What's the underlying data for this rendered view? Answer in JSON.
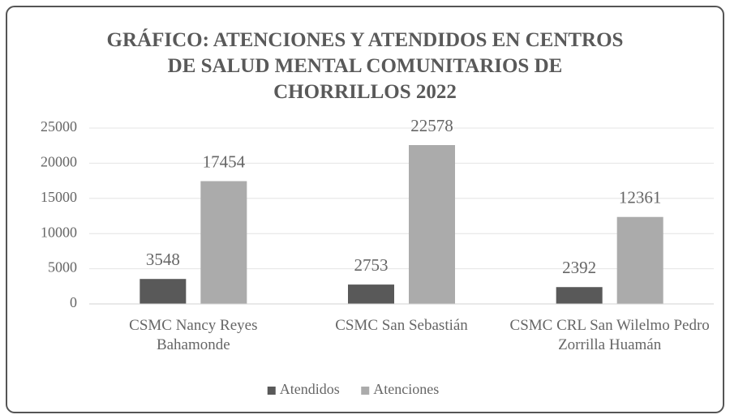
{
  "chart_data": {
    "type": "bar",
    "title": "GRÁFICO: ATENCIONES Y ATENDIDOS EN CENTROS DE SALUD MENTAL COMUNITARIOS DE CHORRILLOS 2022",
    "categories": [
      "CSMC Nancy Reyes Bahamonde",
      "CSMC San Sebastián",
      "CSMC CRL San Wilelmo Pedro Zorrilla Huamán"
    ],
    "series": [
      {
        "name": "Atendidos",
        "color": "#595959",
        "values": [
          3548,
          2753,
          2392
        ]
      },
      {
        "name": "Atenciones",
        "color": "#ababab",
        "values": [
          17454,
          22578,
          12361
        ]
      }
    ],
    "ylim": [
      0,
      25000
    ],
    "yticks": [
      0,
      5000,
      10000,
      15000,
      20000,
      25000
    ],
    "grid": true,
    "legend": "bottom"
  }
}
